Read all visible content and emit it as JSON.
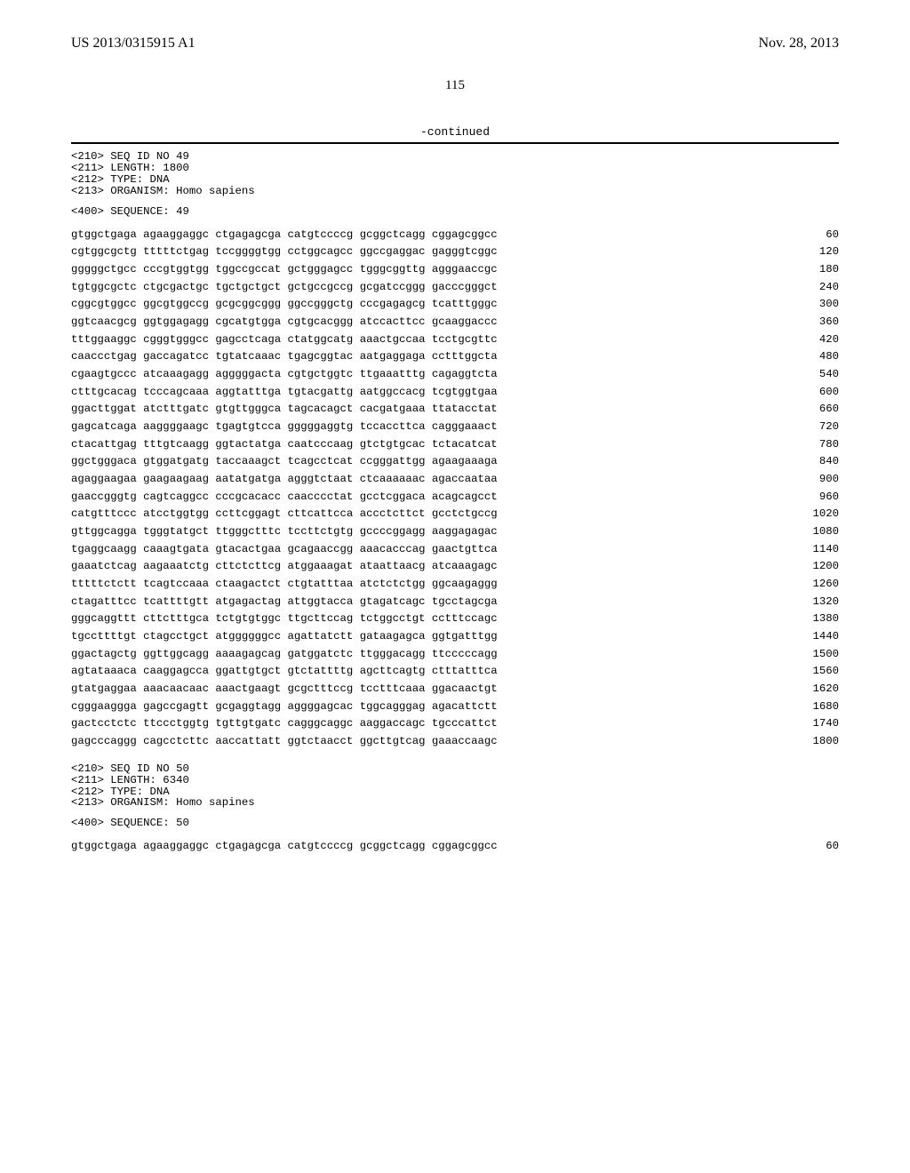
{
  "header": {
    "publication_id": "US 2013/0315915 A1",
    "publication_date": "Nov. 28, 2013"
  },
  "page_number": "115",
  "continued_label": "-continued",
  "sequence_49": {
    "meta": [
      "<210> SEQ ID NO 49",
      "<211> LENGTH: 1800",
      "<212> TYPE: DNA",
      "<213> ORGANISM: Homo sapiens"
    ],
    "sequence_label": "<400> SEQUENCE: 49",
    "rows": [
      {
        "bases": "gtggctgaga agaaggaggc ctgagagcga catgtccccg gcggctcagg cggagcggcc",
        "pos": "60"
      },
      {
        "bases": "cgtggcgctg tttttctgag tccggggtgg cctggcagcc ggccgaggac gagggtcggc",
        "pos": "120"
      },
      {
        "bases": "gggggctgcc cccgtggtgg tggccgccat gctgggagcc tgggcggttg agggaaccgc",
        "pos": "180"
      },
      {
        "bases": "tgtggcgctc ctgcgactgc tgctgctgct gctgccgccg gcgatccggg gacccgggct",
        "pos": "240"
      },
      {
        "bases": "cggcgtggcc ggcgtggccg gcgcggcggg ggccgggctg cccgagagcg tcatttgggc",
        "pos": "300"
      },
      {
        "bases": "ggtcaacgcg ggtggagagg cgcatgtgga cgtgcacggg atccacttcc gcaaggaccc",
        "pos": "360"
      },
      {
        "bases": "tttggaaggc cgggtgggcc gagcctcaga ctatggcatg aaactgccaa tcctgcgttc",
        "pos": "420"
      },
      {
        "bases": "caaccctgag gaccagatcc tgtatcaaac tgagcggtac aatgaggaga cctttggcta",
        "pos": "480"
      },
      {
        "bases": "cgaagtgccc atcaaagagg agggggacta cgtgctggtc ttgaaatttg cagaggtcta",
        "pos": "540"
      },
      {
        "bases": "ctttgcacag tcccagcaaa aggtatttga tgtacgattg aatggccacg tcgtggtgaa",
        "pos": "600"
      },
      {
        "bases": "ggacttggat atctttgatc gtgttgggca tagcacagct cacgatgaaa ttatacctat",
        "pos": "660"
      },
      {
        "bases": "gagcatcaga aaggggaagc tgagtgtcca gggggaggtg tccaccttca cagggaaact",
        "pos": "720"
      },
      {
        "bases": "ctacattgag tttgtcaagg ggtactatga caatcccaag gtctgtgcac tctacatcat",
        "pos": "780"
      },
      {
        "bases": "ggctgggaca gtggatgatg taccaaagct tcagcctcat ccgggattgg agaagaaaga",
        "pos": "840"
      },
      {
        "bases": "agaggaagaa gaagaagaag aatatgatga agggtctaat ctcaaaaaac agaccaataa",
        "pos": "900"
      },
      {
        "bases": "gaaccgggtg cagtcaggcc cccgcacacc caacccctat gcctcggaca acagcagcct",
        "pos": "960"
      },
      {
        "bases": "catgtttccc atcctggtgg ccttcggagt cttcattcca accctcttct gcctctgccg",
        "pos": "1020"
      },
      {
        "bases": "gttggcagga tgggtatgct ttgggctttc tccttctgtg gccccggagg aaggagagac",
        "pos": "1080"
      },
      {
        "bases": "tgaggcaagg caaagtgata gtacactgaa gcagaaccgg aaacacccag gaactgttca",
        "pos": "1140"
      },
      {
        "bases": "gaaatctcag aagaaatctg cttctcttcg atggaaagat ataattaacg atcaaagagc",
        "pos": "1200"
      },
      {
        "bases": "tttttctctt tcagtccaaa ctaagactct ctgtatttaa atctctctgg ggcaagaggg",
        "pos": "1260"
      },
      {
        "bases": "ctagatttcc tcattttgtt atgagactag attggtacca gtagatcagc tgcctagcga",
        "pos": "1320"
      },
      {
        "bases": "gggcaggttt cttctttgca tctgtgtggc ttgcttccag tctggcctgt cctttccagc",
        "pos": "1380"
      },
      {
        "bases": "tgccttttgt ctagcctgct atggggggcc agattatctt gataagagca ggtgatttgg",
        "pos": "1440"
      },
      {
        "bases": "ggactagctg ggttggcagg aaaagagcag gatggatctc ttgggacagg ttcccccagg",
        "pos": "1500"
      },
      {
        "bases": "agtataaaca caaggagcca ggattgtgct gtctattttg agcttcagtg ctttatttca",
        "pos": "1560"
      },
      {
        "bases": "gtatgaggaa aaacaacaac aaactgaagt gcgctttccg tcctttcaaa ggacaactgt",
        "pos": "1620"
      },
      {
        "bases": "cgggaaggga gagccgagtt gcgaggtagg aggggagcac tggcagggag agacattctt",
        "pos": "1680"
      },
      {
        "bases": "gactcctctc ttccctggtg tgttgtgatc cagggcaggc aaggaccagc tgcccattct",
        "pos": "1740"
      },
      {
        "bases": "gagcccaggg cagcctcttc aaccattatt ggtctaacct ggcttgtcag gaaaccaagc",
        "pos": "1800"
      }
    ]
  },
  "sequence_50": {
    "meta": [
      "<210> SEQ ID NO 50",
      "<211> LENGTH: 6340",
      "<212> TYPE: DNA",
      "<213> ORGANISM: Homo sapines"
    ],
    "sequence_label": "<400> SEQUENCE: 50",
    "rows": [
      {
        "bases": "gtggctgaga agaaggaggc ctgagagcga catgtccccg gcggctcagg cggagcggcc",
        "pos": "60"
      }
    ]
  }
}
